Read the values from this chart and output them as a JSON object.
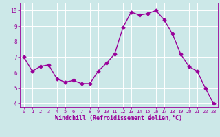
{
  "x": [
    0,
    1,
    2,
    3,
    4,
    5,
    6,
    7,
    8,
    9,
    10,
    11,
    12,
    13,
    14,
    15,
    16,
    17,
    18,
    19,
    20,
    21,
    22,
    23
  ],
  "y": [
    7.0,
    6.1,
    6.4,
    6.5,
    5.6,
    5.4,
    5.5,
    5.3,
    5.3,
    6.1,
    6.6,
    7.2,
    8.9,
    9.9,
    9.7,
    9.8,
    10.0,
    9.4,
    8.5,
    7.2,
    6.4,
    6.1,
    5.0,
    4.0
  ],
  "line_color": "#990099",
  "marker": "D",
  "markersize": 2.5,
  "linewidth": 1.0,
  "bg_color": "#cce8e8",
  "grid_color": "#ffffff",
  "xlabel": "Windchill (Refroidissement éolien,°C)",
  "xlabel_color": "#990099",
  "tick_color": "#990099",
  "xlim": [
    -0.5,
    23.5
  ],
  "ylim": [
    3.8,
    10.5
  ],
  "yticks": [
    4,
    5,
    6,
    7,
    8,
    9,
    10
  ],
  "xticks": [
    0,
    1,
    2,
    3,
    4,
    5,
    6,
    7,
    8,
    9,
    10,
    11,
    12,
    13,
    14,
    15,
    16,
    17,
    18,
    19,
    20,
    21,
    22,
    23
  ],
  "xtick_labels": [
    "0",
    "1",
    "2",
    "3",
    "4",
    "5",
    "6",
    "7",
    "8",
    "9",
    "10",
    "11",
    "12",
    "13",
    "14",
    "15",
    "16",
    "17",
    "18",
    "19",
    "20",
    "21",
    "22",
    "23"
  ],
  "tick_fontsize": 5.0,
  "ytick_fontsize": 5.5,
  "xlabel_fontsize": 6.0
}
